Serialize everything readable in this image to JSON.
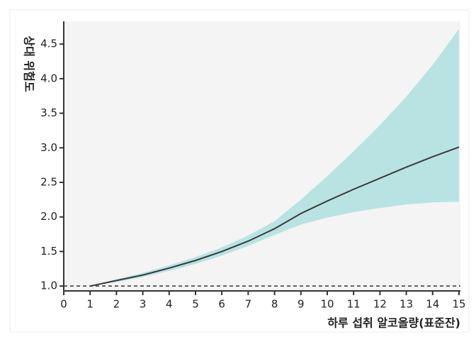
{
  "chart_data": {
    "type": "line",
    "y_label": "상대 위험도",
    "x_label": "하루 섭취 알코올량(표준잔)",
    "x": [
      1,
      2,
      3,
      4,
      5,
      6,
      7,
      8,
      9,
      10,
      11,
      12,
      13,
      14,
      15
    ],
    "series": [
      {
        "color": "#3a3a3a",
        "values": [
          1.0,
          1.08,
          1.16,
          1.26,
          1.37,
          1.5,
          1.65,
          1.83,
          2.05,
          2.23,
          2.4,
          2.56,
          2.72,
          2.87,
          3.01
        ]
      }
    ],
    "band": {
      "color": "#b9e3e3",
      "lower": [
        1.0,
        1.06,
        1.13,
        1.22,
        1.32,
        1.44,
        1.58,
        1.74,
        1.89,
        1.99,
        2.07,
        2.13,
        2.18,
        2.21,
        2.22
      ],
      "upper": [
        1.0,
        1.1,
        1.19,
        1.3,
        1.42,
        1.56,
        1.73,
        1.94,
        2.25,
        2.59,
        2.95,
        3.33,
        3.74,
        4.2,
        4.72
      ]
    },
    "reference_line": 1.0,
    "xlim": [
      0,
      15
    ],
    "xticks": [
      0,
      1,
      2,
      3,
      4,
      5,
      6,
      7,
      8,
      9,
      10,
      11,
      12,
      13,
      14,
      15
    ],
    "ylim": [
      0.93,
      4.83
    ],
    "yticks": [
      {
        "value": 1,
        "label": "1.0"
      },
      1.5,
      {
        "value": 2,
        "label": "2.0"
      },
      2.5,
      {
        "value": 3,
        "label": "3.0"
      },
      3.5,
      {
        "value": 4,
        "label": "4.0"
      },
      4.5
    ]
  }
}
